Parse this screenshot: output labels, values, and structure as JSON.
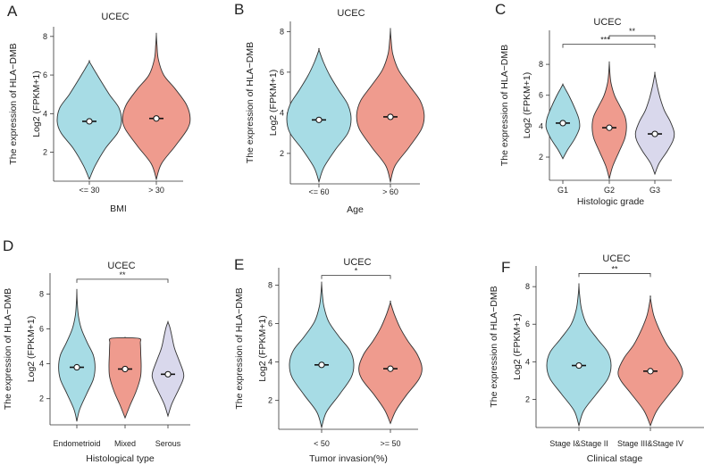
{
  "figure": {
    "colors": {
      "blue": "#a7dce5",
      "red": "#ef9b8e",
      "lavender": "#d9d8ec",
      "stroke": "#333333"
    }
  },
  "chart_data": [
    {
      "panel": "A",
      "type": "violin",
      "title": "UCEC",
      "xlabel": "BMI",
      "ylabel": "The expression of HLA−DMB",
      "ylabel2": "Log2 (FPKM+1)",
      "ylim": [
        0.5,
        8.5
      ],
      "yticks": [
        2,
        4,
        6,
        8
      ],
      "categories": [
        "<= 30",
        "> 30"
      ],
      "series": [
        {
          "name": "<= 30",
          "color": "blue",
          "min": 0.6,
          "max": 6.7,
          "median": 3.6,
          "width": 1.0,
          "profile": [
            [
              0.6,
              0
            ],
            [
              1.3,
              0.18
            ],
            [
              2.2,
              0.5
            ],
            [
              3.0,
              0.88
            ],
            [
              3.6,
              1.0
            ],
            [
              4.3,
              0.92
            ],
            [
              5.0,
              0.62
            ],
            [
              5.8,
              0.32
            ],
            [
              6.3,
              0.14
            ],
            [
              6.7,
              0
            ]
          ]
        },
        {
          "name": "> 30",
          "color": "red",
          "min": 0.6,
          "max": 8.1,
          "median": 3.75,
          "width": 1.05,
          "profile": [
            [
              0.6,
              0
            ],
            [
              1.4,
              0.15
            ],
            [
              2.3,
              0.55
            ],
            [
              3.2,
              0.92
            ],
            [
              3.8,
              1.0
            ],
            [
              4.5,
              0.88
            ],
            [
              5.3,
              0.55
            ],
            [
              6.0,
              0.22
            ],
            [
              6.8,
              0.06
            ],
            [
              7.5,
              0.02
            ],
            [
              8.1,
              0
            ]
          ]
        }
      ],
      "significance": []
    },
    {
      "panel": "B",
      "type": "violin",
      "title": "UCEC",
      "xlabel": "Age",
      "ylabel": "The expression of HLA−DMB",
      "ylabel2": "Log2 (FPKM+1)",
      "ylim": [
        0.5,
        8.5
      ],
      "yticks": [
        2,
        4,
        6,
        8
      ],
      "categories": [
        "<= 60",
        "> 60"
      ],
      "series": [
        {
          "name": "<= 60",
          "color": "blue",
          "min": 0.6,
          "max": 7.1,
          "median": 3.65,
          "width": 1.0,
          "profile": [
            [
              0.6,
              0
            ],
            [
              1.3,
              0.15
            ],
            [
              2.2,
              0.52
            ],
            [
              3.0,
              0.9
            ],
            [
              3.7,
              1.0
            ],
            [
              4.4,
              0.9
            ],
            [
              5.1,
              0.62
            ],
            [
              5.8,
              0.35
            ],
            [
              6.5,
              0.14
            ],
            [
              7.1,
              0
            ]
          ]
        },
        {
          "name": "> 60",
          "color": "red",
          "min": 0.6,
          "max": 8.1,
          "median": 3.8,
          "width": 1.05,
          "profile": [
            [
              0.6,
              0
            ],
            [
              1.4,
              0.14
            ],
            [
              2.3,
              0.55
            ],
            [
              3.2,
              0.92
            ],
            [
              3.9,
              1.0
            ],
            [
              4.6,
              0.88
            ],
            [
              5.3,
              0.58
            ],
            [
              6.1,
              0.24
            ],
            [
              6.9,
              0.07
            ],
            [
              7.6,
              0.02
            ],
            [
              8.1,
              0
            ]
          ]
        }
      ],
      "significance": []
    },
    {
      "panel": "C",
      "type": "violin",
      "title": "UCEC",
      "xlabel": "Histologic grade",
      "ylabel": "The expression of HLA−DMB",
      "ylabel2": "Log2 (FPKM+1)",
      "ylim": [
        0.5,
        10.2
      ],
      "yticks": [
        2,
        4,
        6,
        8
      ],
      "categories": [
        "G1",
        "G2",
        "G3"
      ],
      "series": [
        {
          "name": "G1",
          "color": "blue",
          "min": 1.9,
          "max": 6.7,
          "median": 4.2,
          "width": 0.78,
          "profile": [
            [
              1.9,
              0
            ],
            [
              2.5,
              0.3
            ],
            [
              3.2,
              0.72
            ],
            [
              3.9,
              1.0
            ],
            [
              4.5,
              0.95
            ],
            [
              5.2,
              0.7
            ],
            [
              5.9,
              0.4
            ],
            [
              6.4,
              0.15
            ],
            [
              6.7,
              0
            ]
          ]
        },
        {
          "name": "G2",
          "color": "red",
          "min": 0.6,
          "max": 8.1,
          "median": 3.9,
          "width": 0.8,
          "profile": [
            [
              0.6,
              0
            ],
            [
              1.4,
              0.2
            ],
            [
              2.3,
              0.55
            ],
            [
              3.2,
              0.9
            ],
            [
              3.9,
              1.0
            ],
            [
              4.6,
              0.92
            ],
            [
              5.3,
              0.62
            ],
            [
              6.0,
              0.3
            ],
            [
              6.8,
              0.1
            ],
            [
              7.5,
              0.03
            ],
            [
              8.1,
              0
            ]
          ]
        },
        {
          "name": "G3",
          "color": "lavender",
          "min": 0.9,
          "max": 7.4,
          "median": 3.5,
          "width": 0.9,
          "profile": [
            [
              0.9,
              0
            ],
            [
              1.6,
              0.22
            ],
            [
              2.4,
              0.65
            ],
            [
              3.1,
              0.95
            ],
            [
              3.6,
              1.0
            ],
            [
              4.3,
              0.8
            ],
            [
              5.0,
              0.5
            ],
            [
              5.8,
              0.28
            ],
            [
              6.6,
              0.12
            ],
            [
              7.4,
              0
            ]
          ]
        }
      ],
      "significance": [
        {
          "from": 0,
          "to": 2,
          "y": 9.3,
          "label": "***"
        },
        {
          "from": 1,
          "to": 2,
          "y": 9.85,
          "label": "**"
        }
      ]
    },
    {
      "panel": "D",
      "type": "violin",
      "title": "UCEC",
      "xlabel": "Histological type",
      "ylabel": "The expression of HLA−DMB",
      "ylabel2": "Log2 (FPKM+1)",
      "ylim": [
        0.5,
        9.2
      ],
      "yticks": [
        2,
        4,
        6,
        8
      ],
      "categories": [
        "Endometrioid",
        "Mixed",
        "Serous"
      ],
      "series": [
        {
          "name": "Endometrioid",
          "color": "blue",
          "min": 0.7,
          "max": 8.2,
          "median": 3.8,
          "width": 0.85,
          "profile": [
            [
              0.7,
              0
            ],
            [
              1.4,
              0.16
            ],
            [
              2.3,
              0.55
            ],
            [
              3.1,
              0.9
            ],
            [
              3.8,
              1.0
            ],
            [
              4.5,
              0.9
            ],
            [
              5.2,
              0.58
            ],
            [
              6.0,
              0.25
            ],
            [
              6.8,
              0.08
            ],
            [
              7.6,
              0.02
            ],
            [
              8.2,
              0
            ]
          ]
        },
        {
          "name": "Mixed",
          "color": "red",
          "min": 0.9,
          "max": 5.5,
          "median": 3.7,
          "width": 0.75,
          "profile": [
            [
              0.9,
              0
            ],
            [
              1.6,
              0.3
            ],
            [
              2.4,
              0.68
            ],
            [
              3.2,
              0.95
            ],
            [
              3.8,
              1.0
            ],
            [
              4.5,
              0.98
            ],
            [
              5.2,
              0.95
            ],
            [
              5.45,
              0.9
            ],
            [
              5.5,
              0
            ]
          ]
        },
        {
          "name": "Serous",
          "color": "lavender",
          "min": 1.0,
          "max": 6.4,
          "median": 3.4,
          "width": 0.72,
          "profile": [
            [
              1.0,
              0
            ],
            [
              1.7,
              0.25
            ],
            [
              2.5,
              0.68
            ],
            [
              3.1,
              0.98
            ],
            [
              3.5,
              1.0
            ],
            [
              4.2,
              0.72
            ],
            [
              4.9,
              0.42
            ],
            [
              5.6,
              0.25
            ],
            [
              6.1,
              0.12
            ],
            [
              6.4,
              0
            ]
          ]
        }
      ],
      "significance": [
        {
          "from": 0,
          "to": 2,
          "y": 8.85,
          "label": "**"
        }
      ]
    },
    {
      "panel": "E",
      "type": "violin",
      "title": "UCEC",
      "xlabel": "Tumor invasion(%)",
      "ylabel": "The expression of HLA−DMB",
      "ylabel2": "Log2 (FPKM+1)",
      "ylim": [
        0.5,
        8.9
      ],
      "yticks": [
        2,
        4,
        6,
        8
      ],
      "categories": [
        "< 50",
        ">= 50"
      ],
      "series": [
        {
          "name": "< 50",
          "color": "blue",
          "min": 0.6,
          "max": 8.1,
          "median": 3.85,
          "width": 1.0,
          "profile": [
            [
              0.6,
              0
            ],
            [
              1.4,
              0.15
            ],
            [
              2.3,
              0.55
            ],
            [
              3.2,
              0.92
            ],
            [
              3.9,
              1.0
            ],
            [
              4.6,
              0.88
            ],
            [
              5.3,
              0.55
            ],
            [
              6.1,
              0.22
            ],
            [
              6.9,
              0.07
            ],
            [
              7.6,
              0.02
            ],
            [
              8.1,
              0
            ]
          ]
        },
        {
          "name": ">= 50",
          "color": "red",
          "min": 0.8,
          "max": 7.1,
          "median": 3.65,
          "width": 0.98,
          "profile": [
            [
              0.8,
              0
            ],
            [
              1.5,
              0.18
            ],
            [
              2.3,
              0.52
            ],
            [
              3.1,
              0.9
            ],
            [
              3.7,
              1.0
            ],
            [
              4.4,
              0.85
            ],
            [
              5.1,
              0.55
            ],
            [
              5.8,
              0.3
            ],
            [
              6.5,
              0.12
            ],
            [
              7.1,
              0
            ]
          ]
        }
      ],
      "significance": [
        {
          "from": 0,
          "to": 1,
          "y": 8.5,
          "label": "*"
        }
      ]
    },
    {
      "panel": "F",
      "type": "violin",
      "title": "UCEC",
      "xlabel": "Clinical stage",
      "ylabel": "The expression of HLA−DMB",
      "ylabel2": "Log2 (FPKM+1)",
      "ylim": [
        0.5,
        9.1
      ],
      "yticks": [
        2,
        4,
        6,
        8
      ],
      "categories": [
        "Stage I&Stage II",
        "Stage III&Stage IV"
      ],
      "series": [
        {
          "name": "Stage I&Stage II",
          "color": "blue",
          "min": 0.6,
          "max": 8.1,
          "median": 3.8,
          "width": 1.0,
          "profile": [
            [
              0.6,
              0
            ],
            [
              1.4,
              0.15
            ],
            [
              2.3,
              0.55
            ],
            [
              3.1,
              0.9
            ],
            [
              3.8,
              1.0
            ],
            [
              4.5,
              0.9
            ],
            [
              5.2,
              0.58
            ],
            [
              6.0,
              0.24
            ],
            [
              6.8,
              0.08
            ],
            [
              7.6,
              0.02
            ],
            [
              8.1,
              0
            ]
          ]
        },
        {
          "name": "Stage III&Stage IV",
          "color": "red",
          "min": 0.6,
          "max": 7.4,
          "median": 3.5,
          "width": 1.0,
          "profile": [
            [
              0.6,
              0
            ],
            [
              1.4,
              0.2
            ],
            [
              2.3,
              0.6
            ],
            [
              3.0,
              0.92
            ],
            [
              3.5,
              1.0
            ],
            [
              4.2,
              0.82
            ],
            [
              4.9,
              0.52
            ],
            [
              5.7,
              0.28
            ],
            [
              6.5,
              0.1
            ],
            [
              7.4,
              0
            ]
          ]
        }
      ],
      "significance": [
        {
          "from": 0,
          "to": 1,
          "y": 8.7,
          "label": "**"
        }
      ]
    }
  ]
}
